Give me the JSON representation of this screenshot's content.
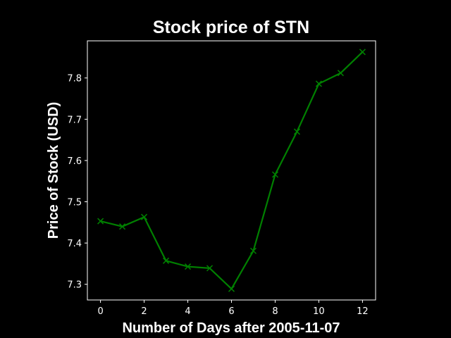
{
  "chart_data": {
    "type": "line",
    "title": "Stock price of STN",
    "xlabel": "Number of Days after 2005-11-07",
    "ylabel": "Price of Stock (USD)",
    "x": [
      0,
      1,
      2,
      3,
      4,
      5,
      6,
      7,
      8,
      9,
      10,
      11,
      12
    ],
    "xlim": [
      -0.6,
      12.6
    ],
    "ylim": [
      7.262,
      7.89
    ],
    "xticks": [
      "0",
      "2",
      "4",
      "6",
      "8",
      "10",
      "12"
    ],
    "yticks": [
      "7.3",
      "7.4",
      "7.5",
      "7.6",
      "7.7",
      "7.8"
    ],
    "series": [
      {
        "values": [
          7.453,
          7.44,
          7.463,
          7.357,
          7.343,
          7.339,
          7.289,
          7.381,
          7.566,
          7.67,
          7.786,
          7.812,
          7.863
        ],
        "color": "#008000",
        "marker": "x"
      }
    ],
    "grid": false,
    "background": "#000000",
    "foreground": "#ffffff"
  }
}
